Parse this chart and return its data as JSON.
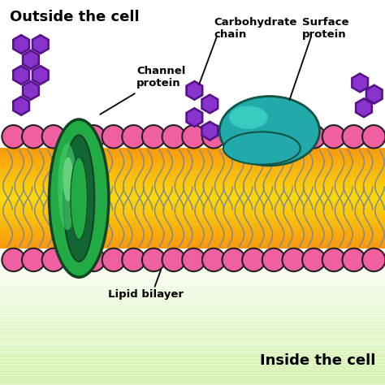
{
  "phospholipid_head_color": "#f060a0",
  "phospholipid_head_outline": "#222222",
  "tail_color_outer": "#f5a020",
  "tail_color_inner": "#ffd080",
  "tail_line_color": "#888888",
  "channel_protein_outer": "#22aa44",
  "channel_protein_dark": "#116633",
  "channel_protein_highlight": "#44cc66",
  "channel_protein_outline": "#114422",
  "surface_protein_color": "#22aaaa",
  "surface_protein_highlight": "#44ddcc",
  "surface_protein_outline": "#115544",
  "carbohydrate_color": "#8833cc",
  "carbohydrate_outline": "#551188",
  "outside_label": "Outside the cell",
  "inside_label": "Inside the cell",
  "channel_label": "Channel\nprotein",
  "lipid_label": "Lipid bilayer",
  "carbo_label": "Carbohydrate\nchain",
  "surface_label": "Surface\nprotein",
  "bg_green": "#b8e878",
  "bg_white": "#ffffff",
  "title_fontsize": 13,
  "label_fontsize": 9.5
}
